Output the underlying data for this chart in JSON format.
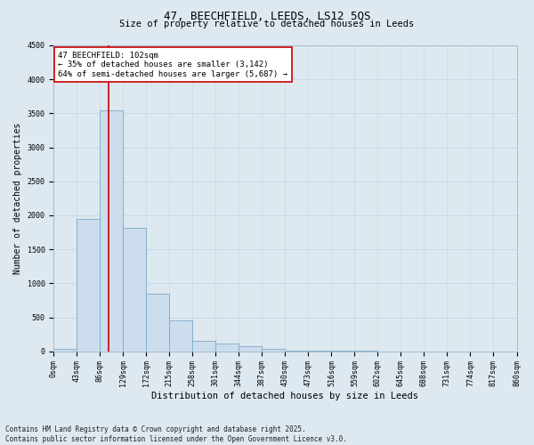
{
  "title": "47, BEECHFIELD, LEEDS, LS12 5QS",
  "subtitle": "Size of property relative to detached houses in Leeds",
  "xlabel": "Distribution of detached houses by size in Leeds",
  "ylabel": "Number of detached properties",
  "bar_color": "#ccdded",
  "bar_edge_color": "#7aaac8",
  "bar_values": [
    30,
    1950,
    3550,
    1820,
    850,
    450,
    160,
    120,
    75,
    35,
    15,
    8,
    5,
    3,
    2,
    1,
    1,
    0,
    0,
    0
  ],
  "bin_labels": [
    "0sqm",
    "43sqm",
    "86sqm",
    "129sqm",
    "172sqm",
    "215sqm",
    "258sqm",
    "301sqm",
    "344sqm",
    "387sqm",
    "430sqm",
    "473sqm",
    "516sqm",
    "559sqm",
    "602sqm",
    "645sqm",
    "688sqm",
    "731sqm",
    "774sqm",
    "817sqm",
    "860sqm"
  ],
  "bin_edges": [
    0,
    43,
    86,
    129,
    172,
    215,
    258,
    301,
    344,
    387,
    430,
    473,
    516,
    559,
    602,
    645,
    688,
    731,
    774,
    817,
    860
  ],
  "vline_x": 102,
  "ylim": [
    0,
    4500
  ],
  "yticks": [
    0,
    500,
    1000,
    1500,
    2000,
    2500,
    3000,
    3500,
    4000,
    4500
  ],
  "annotation_text": "47 BEECHFIELD: 102sqm\n← 35% of detached houses are smaller (3,142)\n64% of semi-detached houses are larger (5,687) →",
  "annotation_box_color": "#ffffff",
  "annotation_box_edge": "#cc0000",
  "vline_color": "#cc0000",
  "grid_color": "#c8d4e4",
  "bg_color": "#dde8f0",
  "title_fontsize": 9,
  "subtitle_fontsize": 7.5,
  "ylabel_fontsize": 7,
  "xlabel_fontsize": 7.5,
  "tick_fontsize": 6,
  "annot_fontsize": 6.5,
  "footnote_fontsize": 5.5,
  "footnote": "Contains HM Land Registry data © Crown copyright and database right 2025.\nContains public sector information licensed under the Open Government Licence v3.0."
}
